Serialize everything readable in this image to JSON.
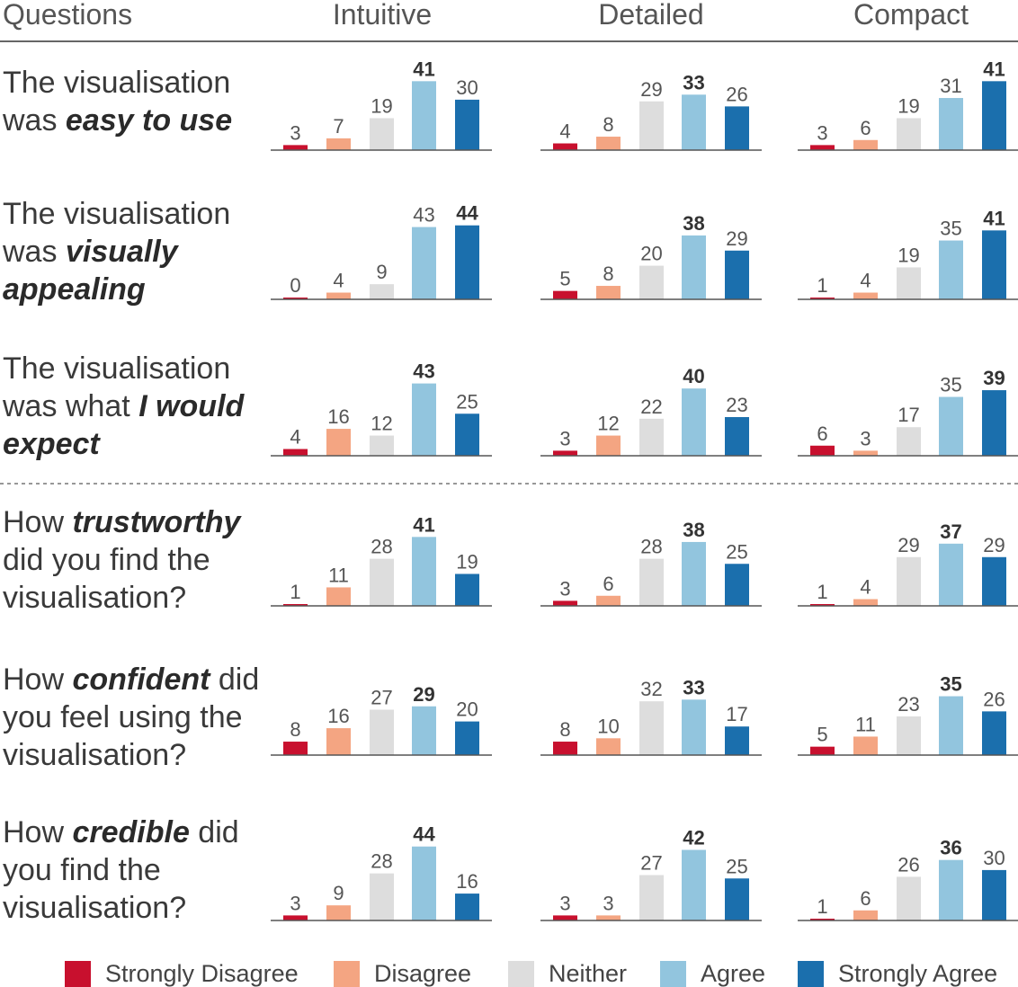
{
  "colors": {
    "strongly_disagree": "#c8102e",
    "disagree": "#f4a582",
    "neither": "#dddddd",
    "agree": "#92c5de",
    "strongly_agree": "#1b6fad"
  },
  "chart_data": {
    "type": "bar",
    "layout": "small multiples",
    "headers": [
      "Questions",
      "Intuitive",
      "Detailed",
      "Compact"
    ],
    "categories": [
      "Strongly Disagree",
      "Disagree",
      "Neither",
      "Agree",
      "Strongly Agree"
    ],
    "legend": {
      "position": "bottom",
      "entries": [
        "Strongly Disagree",
        "Disagree",
        "Neither",
        "Agree",
        "Strongly Agree"
      ]
    },
    "rows": [
      {
        "question": [
          [
            {
              "t": "The visualisation",
              "em": false
            }
          ],
          [
            {
              "t": "was ",
              "em": false
            },
            {
              "t": "easy to use",
              "em": true
            }
          ]
        ],
        "panels": [
          [
            3,
            7,
            19,
            41,
            30
          ],
          [
            4,
            8,
            29,
            33,
            26
          ],
          [
            3,
            6,
            19,
            31,
            41
          ]
        ]
      },
      {
        "question": [
          [
            {
              "t": "The visualisation",
              "em": false
            }
          ],
          [
            {
              "t": "was ",
              "em": false
            },
            {
              "t": "visually",
              "em": true
            }
          ],
          [
            {
              "t": "appealing",
              "em": true
            }
          ]
        ],
        "panels": [
          [
            0,
            4,
            9,
            43,
            44
          ],
          [
            5,
            8,
            20,
            38,
            29
          ],
          [
            1,
            4,
            19,
            35,
            41
          ]
        ]
      },
      {
        "question": [
          [
            {
              "t": "The visualisation",
              "em": false
            }
          ],
          [
            {
              "t": "was what ",
              "em": false
            },
            {
              "t": "I would",
              "em": true
            }
          ],
          [
            {
              "t": "expect",
              "em": true
            }
          ]
        ],
        "panels": [
          [
            4,
            16,
            12,
            43,
            25
          ],
          [
            3,
            12,
            22,
            40,
            23
          ],
          [
            6,
            3,
            17,
            35,
            39
          ]
        ]
      },
      {
        "question": [
          [
            {
              "t": "How ",
              "em": false
            },
            {
              "t": "trustworthy",
              "em": true
            }
          ],
          [
            {
              "t": "did you find the",
              "em": false
            }
          ],
          [
            {
              "t": "visualisation?",
              "em": false
            }
          ]
        ],
        "panels": [
          [
            1,
            11,
            28,
            41,
            19
          ],
          [
            3,
            6,
            28,
            38,
            25
          ],
          [
            1,
            4,
            29,
            37,
            29
          ]
        ]
      },
      {
        "question": [
          [
            {
              "t": "How ",
              "em": false
            },
            {
              "t": "confident",
              "em": true
            },
            {
              "t": " did",
              "em": false
            }
          ],
          [
            {
              "t": "you feel  using the",
              "em": false
            }
          ],
          [
            {
              "t": "visualisation?",
              "em": false
            }
          ]
        ],
        "panels": [
          [
            8,
            16,
            27,
            29,
            20
          ],
          [
            8,
            10,
            32,
            33,
            17
          ],
          [
            5,
            11,
            23,
            35,
            26
          ]
        ]
      },
      {
        "question": [
          [
            {
              "t": "How ",
              "em": false
            },
            {
              "t": "credible",
              "em": true
            },
            {
              "t": " did",
              "em": false
            }
          ],
          [
            {
              "t": "you find the",
              "em": false
            }
          ],
          [
            {
              "t": "visualisation?",
              "em": false
            }
          ]
        ],
        "panels": [
          [
            3,
            9,
            28,
            44,
            16
          ],
          [
            3,
            3,
            27,
            42,
            25
          ],
          [
            1,
            6,
            26,
            36,
            30
          ]
        ]
      }
    ]
  }
}
